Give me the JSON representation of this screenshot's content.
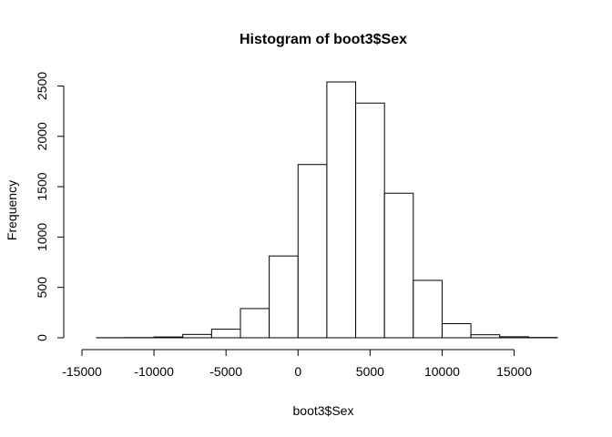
{
  "chart_data": {
    "type": "bar",
    "title": "Histogram of boot3$Sex",
    "xlabel": "boot3$Sex",
    "ylabel": "Frequency",
    "bin_edges": [
      -14000,
      -12000,
      -10000,
      -8000,
      -6000,
      -4000,
      -2000,
      0,
      2000,
      4000,
      6000,
      8000,
      10000,
      12000,
      14000,
      16000,
      18000
    ],
    "values": [
      1,
      2,
      8,
      33,
      85,
      290,
      812,
      1720,
      2540,
      2330,
      1435,
      570,
      140,
      30,
      10,
      3
    ],
    "xlim": [
      -15000,
      18000
    ],
    "ylim": [
      0,
      2600
    ],
    "x_ticks": [
      -15000,
      -10000,
      -5000,
      0,
      5000,
      10000,
      15000
    ],
    "y_ticks": [
      0,
      500,
      1000,
      1500,
      2000,
      2500
    ],
    "grid": false
  }
}
